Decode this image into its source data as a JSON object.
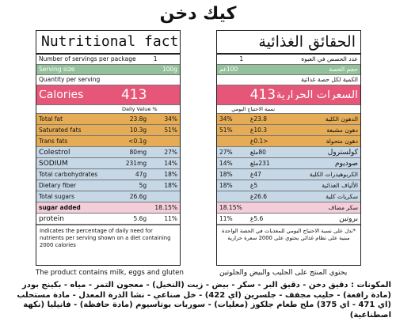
{
  "product_title": "كيك دخن",
  "english_label": {
    "title": "Nutritional facts",
    "servings_per_package": {
      "label": "Number of servings per package",
      "value": "1"
    },
    "serving_size": {
      "label": "Serving size",
      "value": "100g"
    },
    "quantity_per_serving": "Quantity per serving",
    "calories": {
      "label": "Calories",
      "value": "413"
    },
    "daily_value_header": "Daily Value %",
    "nutrients": [
      {
        "name": "Total fat",
        "amount": "23.8g",
        "dv": "34%"
      },
      {
        "name": "Saturated fats",
        "amount": "10.3g",
        "dv": "51%"
      },
      {
        "name": "Trans fats",
        "amount": "<0.1g",
        "dv": ""
      },
      {
        "name": "Colestrol",
        "amount": "80mg",
        "dv": "27%"
      },
      {
        "name": "SODIUM",
        "amount": "231mg",
        "dv": "14%"
      },
      {
        "name": "Total carbohydrates",
        "amount": "47g",
        "dv": "18%"
      },
      {
        "name": "Dietary fiber",
        "amount": "5g",
        "dv": "18%"
      },
      {
        "name": "Total sugars",
        "amount": "26.6g",
        "dv": ""
      },
      {
        "name": "sugar added",
        "amount": "",
        "dv": "18.15%"
      },
      {
        "name": "protein",
        "amount": "5.6g",
        "dv": "11%"
      }
    ],
    "footnote": "Indicates the percentage of daily need for nutrients per serving shown on a diet containing 2000 calories"
  },
  "arabic_label": {
    "title": "الحقائق الغذائية",
    "servings_per_package": {
      "label": "عدد الحصص في العبوة",
      "value": "1"
    },
    "serving_size": {
      "label": "حجم الحصة",
      "value": "100غم"
    },
    "quantity_per_serving": "الكمية لكل حصة غذائية",
    "calories": {
      "label": "السعرات الحرارية",
      "value": "413"
    },
    "daily_value_header": "نسبة الاحتياج اليومي",
    "nutrients": [
      {
        "name": "الدهون الكلية",
        "amount": "23.8غ",
        "dv": "34%"
      },
      {
        "name": "دهون مشبعة",
        "amount": "10.3غ",
        "dv": "51%"
      },
      {
        "name": "دهون متحولة",
        "amount": "<0.1غ",
        "dv": ""
      },
      {
        "name": "كولسترول",
        "amount": "80ملغ",
        "dv": "27%"
      },
      {
        "name": "صوديوم",
        "amount": "231ملغ",
        "dv": "14%"
      },
      {
        "name": "الكربوهيدرات الكلية",
        "amount": "47غ",
        "dv": "18%"
      },
      {
        "name": "الألياف الغذائية",
        "amount": "5غ",
        "dv": "18%"
      },
      {
        "name": "سكريات كلية",
        "amount": "26.6غ",
        "dv": ""
      },
      {
        "name": "سكر مضاف",
        "amount": "",
        "dv": "18.15%"
      },
      {
        "name": "بروتين",
        "amount": "5.6غ",
        "dv": "11%"
      }
    ],
    "footnote": "*تدل على نسبة الاحتياج اليومي للمغذيات في الحصة الواحدة مبنية على نظام غذائي يحتوي على 2000 سعرة حرارية"
  },
  "allergen_en": "The product contains milk, eggs and gluten",
  "allergen_ar": "يحتوي المنتج على الحليب والبيض والجلوتين",
  "ingredients": "المكونات : دقيق دخن - دقيق البر - سكر - بيض - زيت (النخيل) - معجون التمر - مياه - بكينج بودر (مادة رافعة) - حليب مجفف - جلسرين (اي 422) - خل صناعي - نشا الذرة المعدل - مادة مستحلب (اي 471 - اي 375) ملح طعام جلكوز (معليات) - سوربات بوتاسيوم (مادة حافظة) - فانيليا (نكهة اصطناعية)"
}
